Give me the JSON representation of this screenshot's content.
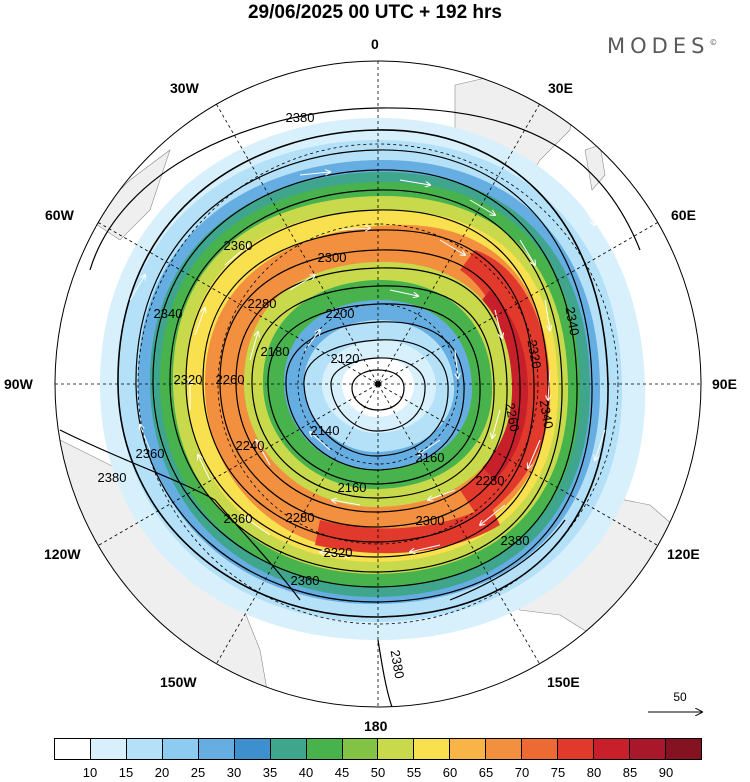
{
  "title": "29/06/2025  00 UTC  + 192 hrs",
  "brand": "MODES",
  "brand_mark": "©",
  "longitude_labels": [
    "0",
    "30E",
    "60E",
    "90E",
    "120E",
    "150E",
    "180",
    "150W",
    "120W",
    "90W",
    "60W",
    "30W"
  ],
  "contour_labels": [
    "2380",
    "2360",
    "2340",
    "2320",
    "2300",
    "2280",
    "2260",
    "2240",
    "2200",
    "2180",
    "2160",
    "2140",
    "2120"
  ],
  "reference_vector": {
    "label": "50"
  },
  "colorbar": {
    "colors": [
      "#ffffff",
      "#d7f0fc",
      "#b4e1f8",
      "#8ecbf0",
      "#66aee2",
      "#3e8fcd",
      "#3fa68d",
      "#48b34c",
      "#82c245",
      "#c8d94c",
      "#f9e04e",
      "#f8b447",
      "#f3903f",
      "#ee6a34",
      "#e1392b",
      "#c8202a",
      "#a8182a",
      "#851220"
    ],
    "labels": [
      "10",
      "15",
      "20",
      "25",
      "30",
      "35",
      "40",
      "45",
      "50",
      "55",
      "60",
      "65",
      "70",
      "75",
      "80",
      "85",
      "90"
    ]
  }
}
